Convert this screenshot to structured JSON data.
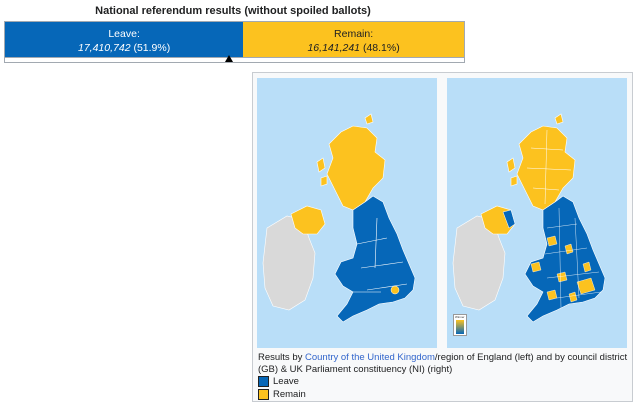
{
  "bar": {
    "title": "National referendum results (without spoiled ballots)",
    "leave": {
      "label": "Leave:",
      "votes": "17,410,742",
      "percent_text": "(51.9%)",
      "share": 51.9,
      "color": "#0667b8"
    },
    "remain": {
      "label": "Remain:",
      "votes": "16,141,241",
      "percent_text": "(48.1%)",
      "share": 48.1,
      "color": "#fcc21f"
    }
  },
  "figure": {
    "caption_prefix": "Results by ",
    "caption_link": "Country of the United Kingdom",
    "caption_suffix": "/region of England (left) and by council district (GB) & UK Parliament constituency (NI) (right)",
    "legend": [
      {
        "label": "Leave",
        "color": "#0667b8"
      },
      {
        "label": "Remain",
        "color": "#fcc21f"
      }
    ],
    "sea_color": "#b9def8",
    "land_other_color": "#d9d9d9",
    "inset_legend_text": "Winner"
  }
}
